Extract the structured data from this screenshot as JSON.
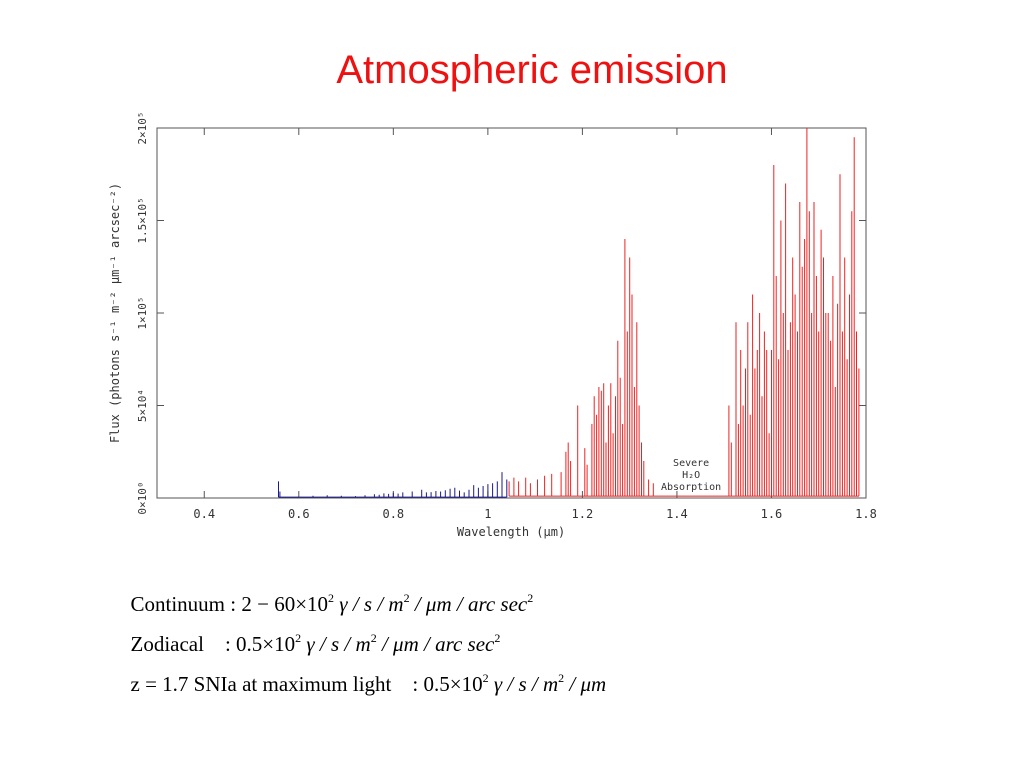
{
  "title": "Atmospheric emission",
  "chart_data": {
    "type": "line",
    "xlabel": "Wavelength (μm)",
    "ylabel": "Flux (photons s⁻¹ m⁻² μm⁻¹ arcsec⁻²)",
    "xlim": [
      0.3,
      1.8
    ],
    "ylim": [
      0,
      200000
    ],
    "xticks": [
      {
        "value": 0.4,
        "label": "0.4"
      },
      {
        "value": 0.6,
        "label": "0.6"
      },
      {
        "value": 0.8,
        "label": "0.8"
      },
      {
        "value": 1.0,
        "label": "1"
      },
      {
        "value": 1.2,
        "label": "1.2"
      },
      {
        "value": 1.4,
        "label": "1.4"
      },
      {
        "value": 1.6,
        "label": "1.6"
      },
      {
        "value": 1.8,
        "label": "1.8"
      }
    ],
    "yticks": [
      {
        "value": 0,
        "label": "0×10⁰"
      },
      {
        "value": 50000,
        "label": "5×10⁴"
      },
      {
        "value": 100000,
        "label": "1×10⁵"
      },
      {
        "value": 150000,
        "label": "1.5×10⁵"
      },
      {
        "value": 200000,
        "label": "2×10⁵"
      }
    ],
    "annotation": {
      "lines": [
        "Severe",
        "H₂O",
        "Absorption"
      ],
      "x": 1.43,
      "y": 12000
    },
    "series": [
      {
        "color": "#1a1a8c",
        "baseline": 500,
        "points": [
          [
            0.557,
            9000
          ],
          [
            0.56,
            3500
          ],
          [
            0.63,
            1200
          ],
          [
            0.66,
            1500
          ],
          [
            0.69,
            1200
          ],
          [
            0.72,
            1000
          ],
          [
            0.74,
            1500
          ],
          [
            0.76,
            2000
          ],
          [
            0.77,
            1800
          ],
          [
            0.78,
            2500
          ],
          [
            0.79,
            2200
          ],
          [
            0.8,
            2800
          ],
          [
            0.81,
            2400
          ],
          [
            0.82,
            3000
          ],
          [
            0.84,
            3500
          ],
          [
            0.86,
            4500
          ],
          [
            0.87,
            3000
          ],
          [
            0.88,
            3200
          ],
          [
            0.89,
            3800
          ],
          [
            0.9,
            3500
          ],
          [
            0.91,
            4200
          ],
          [
            0.92,
            5000
          ],
          [
            0.93,
            5500
          ],
          [
            0.94,
            4000
          ],
          [
            0.95,
            3000
          ],
          [
            0.96,
            4500
          ],
          [
            0.97,
            7000
          ],
          [
            0.98,
            5500
          ],
          [
            0.99,
            6500
          ],
          [
            1.0,
            7500
          ],
          [
            1.01,
            8000
          ],
          [
            1.02,
            9000
          ],
          [
            1.03,
            14000
          ],
          [
            1.04,
            10000
          ]
        ]
      },
      {
        "color": "#ee2222",
        "baseline": 1000,
        "points": [
          [
            1.045,
            9000
          ],
          [
            1.055,
            11000
          ],
          [
            1.065,
            9000
          ],
          [
            1.08,
            11000
          ],
          [
            1.09,
            8000
          ],
          [
            1.105,
            10000
          ],
          [
            1.12,
            12000
          ],
          [
            1.135,
            13000
          ],
          [
            1.155,
            14000
          ],
          [
            1.165,
            25000
          ],
          [
            1.17,
            30000
          ],
          [
            1.175,
            20000
          ],
          [
            1.19,
            50000
          ],
          [
            1.205,
            27000
          ],
          [
            1.21,
            18000
          ],
          [
            1.22,
            40000
          ],
          [
            1.225,
            55000
          ],
          [
            1.23,
            45000
          ],
          [
            1.235,
            60000
          ],
          [
            1.24,
            58000
          ],
          [
            1.245,
            62000
          ],
          [
            1.25,
            30000
          ],
          [
            1.255,
            50000
          ],
          [
            1.26,
            62000
          ],
          [
            1.265,
            35000
          ],
          [
            1.27,
            55000
          ],
          [
            1.275,
            85000
          ],
          [
            1.28,
            65000
          ],
          [
            1.285,
            40000
          ],
          [
            1.29,
            140000
          ],
          [
            1.295,
            90000
          ],
          [
            1.3,
            130000
          ],
          [
            1.305,
            110000
          ],
          [
            1.31,
            60000
          ],
          [
            1.315,
            95000
          ],
          [
            1.32,
            50000
          ],
          [
            1.325,
            30000
          ],
          [
            1.33,
            20000
          ],
          [
            1.34,
            10000
          ],
          [
            1.35,
            8000
          ],
          [
            1.51,
            50000
          ],
          [
            1.515,
            30000
          ],
          [
            1.525,
            95000
          ],
          [
            1.53,
            40000
          ],
          [
            1.535,
            80000
          ],
          [
            1.54,
            50000
          ],
          [
            1.545,
            70000
          ],
          [
            1.55,
            95000
          ],
          [
            1.555,
            45000
          ],
          [
            1.56,
            110000
          ],
          [
            1.565,
            70000
          ],
          [
            1.57,
            80000
          ],
          [
            1.575,
            100000
          ],
          [
            1.58,
            55000
          ],
          [
            1.585,
            90000
          ],
          [
            1.59,
            80000
          ],
          [
            1.595,
            35000
          ],
          [
            1.6,
            80000
          ],
          [
            1.605,
            180000
          ],
          [
            1.61,
            120000
          ],
          [
            1.615,
            75000
          ],
          [
            1.62,
            150000
          ],
          [
            1.625,
            100000
          ],
          [
            1.63,
            170000
          ],
          [
            1.635,
            80000
          ],
          [
            1.64,
            95000
          ],
          [
            1.645,
            130000
          ],
          [
            1.65,
            110000
          ],
          [
            1.655,
            90000
          ],
          [
            1.66,
            160000
          ],
          [
            1.665,
            125000
          ],
          [
            1.67,
            140000
          ],
          [
            1.675,
            200000
          ],
          [
            1.68,
            155000
          ],
          [
            1.685,
            100000
          ],
          [
            1.69,
            160000
          ],
          [
            1.695,
            120000
          ],
          [
            1.7,
            90000
          ],
          [
            1.705,
            145000
          ],
          [
            1.71,
            130000
          ],
          [
            1.715,
            100000
          ],
          [
            1.72,
            100000
          ],
          [
            1.725,
            85000
          ],
          [
            1.73,
            120000
          ],
          [
            1.735,
            60000
          ],
          [
            1.74,
            105000
          ],
          [
            1.745,
            175000
          ],
          [
            1.75,
            90000
          ],
          [
            1.755,
            130000
          ],
          [
            1.76,
            75000
          ],
          [
            1.765,
            110000
          ],
          [
            1.77,
            155000
          ],
          [
            1.775,
            195000
          ],
          [
            1.78,
            90000
          ],
          [
            1.785,
            70000
          ]
        ]
      }
    ]
  },
  "equations": [
    {
      "label": "Continuum :",
      "value": "2 − 60×10",
      "exp": "2",
      "units": "γ / s / m",
      "units_exp": "2",
      "tail": " / μm / arc sec",
      "tail_exp": "2"
    },
    {
      "label": "Zodiacal    :",
      "value": "0.5×10",
      "exp": "2",
      "units": "γ / s / m",
      "units_exp": "2",
      "tail": " / μm / arc sec",
      "tail_exp": "2"
    },
    {
      "label": "z = 1.7 SNIa at maximum light    :",
      "value": "0.5×10",
      "exp": "2",
      "units": "γ / s / m",
      "units_exp": "2",
      "tail": " / μm",
      "tail_exp": ""
    }
  ]
}
